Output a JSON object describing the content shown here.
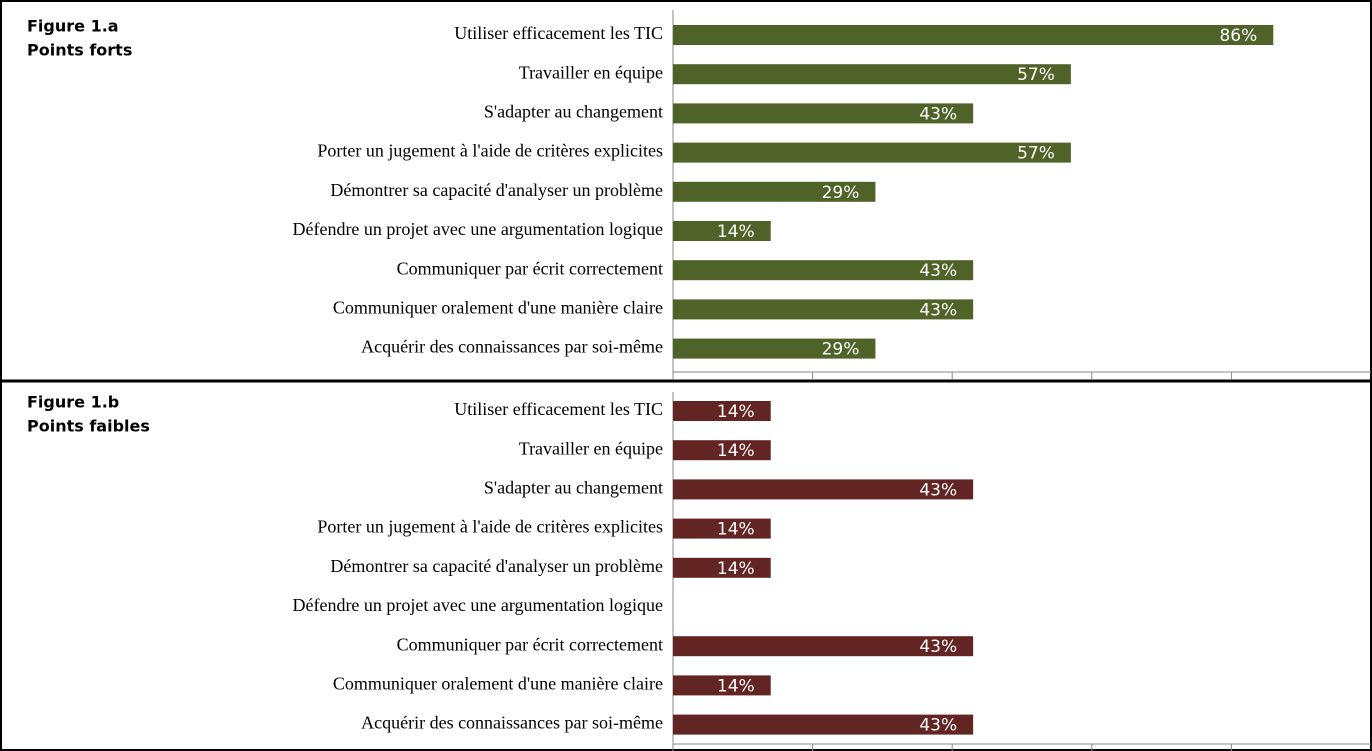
{
  "chart_data": [
    {
      "type": "bar",
      "orientation": "horizontal",
      "title": "Figure 1.a",
      "subtitle": "Points forts",
      "color": "#4f6228",
      "categories": [
        "Utiliser efficacement les TIC",
        "Travailler en équipe",
        "S'adapter au changement",
        "Porter un jugement à l'aide de critères explicites",
        "Démontrer sa capacité d'analyser un problème",
        "Défendre un projet avec une argumentation logique",
        "Communiquer par écrit correctement",
        "Communiquer oralement d'une manière claire",
        "Acquérir des connaissances par soi-même"
      ],
      "values": [
        86,
        57,
        43,
        57,
        29,
        14,
        43,
        43,
        29
      ],
      "value_labels": [
        "86%",
        "57%",
        "43%",
        "57%",
        "29%",
        "14%",
        "43%",
        "43%",
        "29%"
      ],
      "xlim": [
        0,
        100
      ],
      "xticks": [
        0,
        20,
        40,
        60,
        80
      ]
    },
    {
      "type": "bar",
      "orientation": "horizontal",
      "title": "Figure 1.b",
      "subtitle": "Points faibles",
      "color": "#632523",
      "categories": [
        "Utiliser efficacement les TIC",
        "Travailler en équipe",
        "S'adapter au changement",
        "Porter un jugement à l'aide de critères explicites",
        "Démontrer sa capacité d'analyser un problème",
        "Défendre un projet avec une argumentation logique",
        "Communiquer par écrit correctement",
        "Communiquer oralement d'une manière claire",
        "Acquérir des connaissances par soi-même"
      ],
      "values": [
        14,
        14,
        43,
        14,
        14,
        null,
        43,
        14,
        43
      ],
      "value_labels": [
        "14%",
        "14%",
        "43%",
        "14%",
        "14%",
        null,
        "43%",
        "14%",
        "43%"
      ],
      "xlim": [
        0,
        100
      ],
      "xticks": [
        0,
        20,
        40,
        60,
        80
      ]
    }
  ]
}
